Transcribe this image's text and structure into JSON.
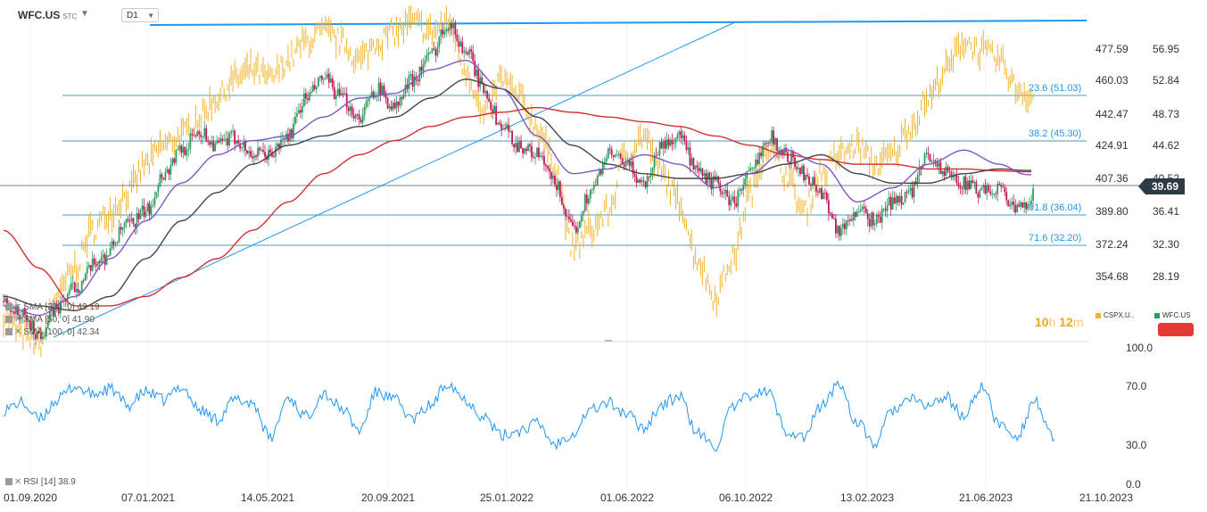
{
  "header": {
    "symbol": "WFC.US",
    "symbol_suffix": "STC",
    "timeframe": "D1"
  },
  "indicators": {
    "sma1": "SMA [200, 0]  42.19",
    "sma2": "SMA [50, 0]  41.90",
    "sma3": "SMA [100, 0]  42.34",
    "rsi": "RSI [14]  38.9"
  },
  "countdown": {
    "hours": "10",
    "hours_unit": "h",
    "minutes": "12",
    "minutes_unit": "m"
  },
  "legend": {
    "item1": "CSPX.U..",
    "item2": "WFC.US"
  },
  "current_price": "39.69",
  "colors": {
    "up_candle": "#2e9e5e",
    "down_candle": "#c2185b",
    "compare": "#f0b429",
    "trend": "#2196f3",
    "sma_red": "#d32f2f",
    "sma_black": "#444444",
    "sma_purple": "#7e57c2",
    "rsi": "#2196f3",
    "fib": "#1976a8"
  },
  "chart_data": {
    "type": "line",
    "x_ticks": [
      "01.09.2020",
      "07.01.2021",
      "14.05.2021",
      "20.09.2021",
      "25.01.2022",
      "01.06.2022",
      "06.10.2022",
      "13.02.2023",
      "21.06.2023",
      "21.10.2023"
    ],
    "left_axis_ticks": [
      "477.59",
      "460.03",
      "442.47",
      "424.91",
      "407.36",
      "389.80",
      "372.24",
      "354.68"
    ],
    "right_axis_ticks": [
      "56.95",
      "52.84",
      "48.73",
      "44.62",
      "40.52",
      "36.41",
      "32.30",
      "28.19"
    ],
    "fib_levels": [
      {
        "label": "23.6 (51.03)",
        "value": 51.03
      },
      {
        "label": "38.2 (45.30)",
        "value": 45.3
      },
      {
        "label": "61.8 (36.04)",
        "value": 36.04
      },
      {
        "label": "71.6 (32.20)",
        "value": 32.2
      }
    ],
    "price_range": [
      24.5,
      58.5
    ],
    "price_anchors_wfc": [
      [
        0,
        28.5
      ],
      [
        10,
        27
      ],
      [
        20,
        25
      ],
      [
        30,
        27.8
      ],
      [
        40,
        30
      ],
      [
        55,
        33
      ],
      [
        70,
        36.5
      ],
      [
        80,
        38
      ],
      [
        90,
        42
      ],
      [
        100,
        44.5
      ],
      [
        110,
        46.5
      ],
      [
        120,
        45
      ],
      [
        130,
        45.8
      ],
      [
        140,
        44
      ],
      [
        150,
        44
      ],
      [
        160,
        46
      ],
      [
        170,
        50
      ],
      [
        180,
        52
      ],
      [
        190,
        50
      ],
      [
        200,
        48
      ],
      [
        210,
        51
      ],
      [
        220,
        49
      ],
      [
        230,
        52
      ],
      [
        240,
        54.5
      ],
      [
        250,
        58
      ],
      [
        260,
        55
      ],
      [
        270,
        51
      ],
      [
        280,
        47
      ],
      [
        290,
        45
      ],
      [
        300,
        44
      ],
      [
        310,
        41
      ],
      [
        320,
        36
      ],
      [
        330,
        40
      ],
      [
        340,
        44
      ],
      [
        350,
        43
      ],
      [
        360,
        41
      ],
      [
        370,
        45
      ],
      [
        380,
        46
      ],
      [
        390,
        42
      ],
      [
        400,
        41
      ],
      [
        410,
        39
      ],
      [
        420,
        42
      ],
      [
        430,
        46
      ],
      [
        440,
        44
      ],
      [
        450,
        42
      ],
      [
        460,
        40
      ],
      [
        470,
        36
      ],
      [
        480,
        38
      ],
      [
        490,
        37
      ],
      [
        500,
        39
      ],
      [
        510,
        40
      ],
      [
        520,
        44
      ],
      [
        530,
        42
      ],
      [
        540,
        41
      ],
      [
        550,
        40
      ],
      [
        560,
        40.5
      ],
      [
        570,
        38
      ],
      [
        580,
        40
      ]
    ],
    "compare_anchors": [
      [
        0,
        27
      ],
      [
        10,
        25
      ],
      [
        20,
        24
      ],
      [
        30,
        29
      ],
      [
        40,
        32
      ],
      [
        50,
        36
      ],
      [
        60,
        38
      ],
      [
        70,
        40
      ],
      [
        80,
        43
      ],
      [
        90,
        45
      ],
      [
        100,
        46
      ],
      [
        110,
        48
      ],
      [
        120,
        50
      ],
      [
        130,
        52
      ],
      [
        140,
        53
      ],
      [
        150,
        52
      ],
      [
        160,
        54
      ],
      [
        170,
        56
      ],
      [
        180,
        57
      ],
      [
        190,
        56
      ],
      [
        200,
        54
      ],
      [
        210,
        56
      ],
      [
        220,
        57
      ],
      [
        230,
        58
      ],
      [
        240,
        57
      ],
      [
        250,
        58
      ],
      [
        260,
        53
      ],
      [
        270,
        48
      ],
      [
        280,
        52
      ],
      [
        290,
        50
      ],
      [
        300,
        47
      ],
      [
        310,
        43
      ],
      [
        320,
        34
      ],
      [
        330,
        36
      ],
      [
        340,
        38
      ],
      [
        350,
        44
      ],
      [
        360,
        46
      ],
      [
        370,
        42
      ],
      [
        380,
        39
      ],
      [
        390,
        33
      ],
      [
        400,
        29
      ],
      [
        410,
        33
      ],
      [
        420,
        40
      ],
      [
        430,
        45
      ],
      [
        440,
        42
      ],
      [
        450,
        38
      ],
      [
        460,
        42
      ],
      [
        470,
        44
      ],
      [
        480,
        45
      ],
      [
        490,
        43
      ],
      [
        500,
        44
      ],
      [
        510,
        47
      ],
      [
        520,
        50
      ],
      [
        530,
        53
      ],
      [
        540,
        56
      ],
      [
        550,
        55
      ],
      [
        560,
        54
      ],
      [
        570,
        51
      ],
      [
        580,
        50
      ]
    ],
    "sma200_anchors": [
      [
        0,
        36
      ],
      [
        20,
        32
      ],
      [
        40,
        28
      ],
      [
        60,
        28
      ],
      [
        80,
        29
      ],
      [
        100,
        31
      ],
      [
        120,
        33
      ],
      [
        140,
        36
      ],
      [
        160,
        39
      ],
      [
        180,
        42
      ],
      [
        200,
        44
      ],
      [
        220,
        45.5
      ],
      [
        240,
        47
      ],
      [
        260,
        48
      ],
      [
        280,
        48.5
      ],
      [
        300,
        49
      ],
      [
        320,
        48.5
      ],
      [
        340,
        48
      ],
      [
        360,
        47.5
      ],
      [
        380,
        47
      ],
      [
        400,
        46
      ],
      [
        420,
        45
      ],
      [
        440,
        44
      ],
      [
        460,
        43.5
      ],
      [
        480,
        43
      ],
      [
        500,
        43
      ],
      [
        520,
        42.5
      ],
      [
        540,
        42.5
      ],
      [
        560,
        42.3
      ],
      [
        575,
        42.2
      ]
    ],
    "sma100_anchors": [
      [
        0,
        29
      ],
      [
        20,
        28
      ],
      [
        40,
        27.5
      ],
      [
        60,
        29
      ],
      [
        80,
        33
      ],
      [
        100,
        37
      ],
      [
        120,
        40
      ],
      [
        140,
        43
      ],
      [
        160,
        45
      ],
      [
        180,
        46
      ],
      [
        200,
        47
      ],
      [
        220,
        48
      ],
      [
        240,
        50
      ],
      [
        260,
        52
      ],
      [
        280,
        51
      ],
      [
        300,
        48
      ],
      [
        320,
        45
      ],
      [
        340,
        43
      ],
      [
        360,
        42
      ],
      [
        380,
        41.5
      ],
      [
        400,
        41.5
      ],
      [
        420,
        42
      ],
      [
        440,
        43
      ],
      [
        460,
        44
      ],
      [
        480,
        42
      ],
      [
        500,
        41
      ],
      [
        520,
        41
      ],
      [
        540,
        42
      ],
      [
        560,
        42.5
      ],
      [
        575,
        42.34
      ]
    ],
    "sma50_anchors": [
      [
        0,
        28
      ],
      [
        20,
        27
      ],
      [
        40,
        29
      ],
      [
        60,
        33
      ],
      [
        80,
        37
      ],
      [
        100,
        41
      ],
      [
        120,
        44
      ],
      [
        140,
        45.5
      ],
      [
        160,
        46
      ],
      [
        180,
        48
      ],
      [
        200,
        50
      ],
      [
        220,
        50.5
      ],
      [
        240,
        53
      ],
      [
        260,
        54
      ],
      [
        280,
        51
      ],
      [
        300,
        46
      ],
      [
        320,
        42
      ],
      [
        340,
        42.5
      ],
      [
        360,
        44
      ],
      [
        380,
        43
      ],
      [
        400,
        40.5
      ],
      [
        420,
        42
      ],
      [
        440,
        44.5
      ],
      [
        460,
        43
      ],
      [
        480,
        39
      ],
      [
        500,
        40.5
      ],
      [
        520,
        43
      ],
      [
        540,
        44.5
      ],
      [
        560,
        43
      ],
      [
        575,
        41.9
      ]
    ],
    "rsi_range": [
      0,
      100
    ],
    "rsi_ticks": [
      "100.0",
      "70.0",
      "30.0",
      "0.0"
    ],
    "rsi_anchors": [
      [
        0,
        55
      ],
      [
        10,
        60
      ],
      [
        20,
        48
      ],
      [
        30,
        62
      ],
      [
        40,
        72
      ],
      [
        50,
        66
      ],
      [
        60,
        70
      ],
      [
        70,
        58
      ],
      [
        80,
        68
      ],
      [
        90,
        62
      ],
      [
        100,
        72
      ],
      [
        110,
        55
      ],
      [
        120,
        48
      ],
      [
        130,
        62
      ],
      [
        140,
        60
      ],
      [
        150,
        34
      ],
      [
        160,
        64
      ],
      [
        170,
        50
      ],
      [
        180,
        67
      ],
      [
        190,
        56
      ],
      [
        200,
        40
      ],
      [
        210,
        68
      ],
      [
        220,
        62
      ],
      [
        230,
        48
      ],
      [
        240,
        58
      ],
      [
        250,
        75
      ],
      [
        260,
        62
      ],
      [
        270,
        50
      ],
      [
        280,
        36
      ],
      [
        290,
        40
      ],
      [
        300,
        45
      ],
      [
        310,
        30
      ],
      [
        320,
        38
      ],
      [
        330,
        55
      ],
      [
        340,
        60
      ],
      [
        350,
        52
      ],
      [
        360,
        42
      ],
      [
        370,
        58
      ],
      [
        380,
        65
      ],
      [
        390,
        38
      ],
      [
        400,
        28
      ],
      [
        410,
        56
      ],
      [
        420,
        66
      ],
      [
        430,
        68
      ],
      [
        440,
        40
      ],
      [
        450,
        35
      ],
      [
        460,
        58
      ],
      [
        470,
        74
      ],
      [
        480,
        45
      ],
      [
        490,
        30
      ],
      [
        500,
        55
      ],
      [
        510,
        62
      ],
      [
        520,
        58
      ],
      [
        530,
        64
      ],
      [
        540,
        50
      ],
      [
        550,
        72
      ],
      [
        560,
        44
      ],
      [
        570,
        36
      ],
      [
        580,
        62
      ],
      [
        590,
        34
      ],
      [
        600,
        40
      ]
    ]
  }
}
